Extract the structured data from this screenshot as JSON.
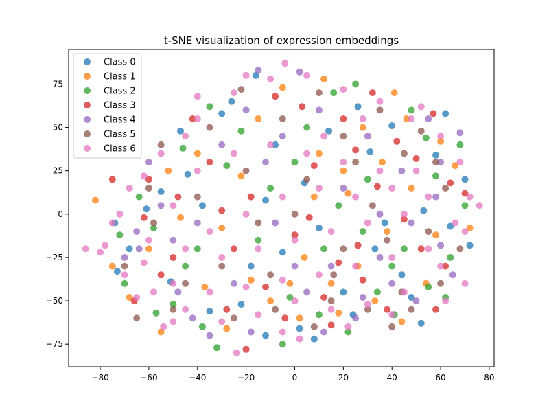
{
  "chart_data": {
    "type": "scatter",
    "title": "t-SNE visualization of expression embeddings",
    "xlabel": "",
    "ylabel": "",
    "xlim": [
      -93,
      82
    ],
    "ylim": [
      -88,
      95
    ],
    "xticks": [
      -80,
      -60,
      -40,
      -20,
      0,
      20,
      40,
      60,
      80
    ],
    "yticks": [
      -75,
      -50,
      -25,
      0,
      25,
      50,
      75
    ],
    "legend_placement": "top-left",
    "grid": false,
    "marker_alpha": 0.75,
    "series": [
      {
        "name": "Class 0",
        "color": "#1f77b4",
        "points": [
          [
            -73,
            -33
          ],
          [
            -30,
            58
          ],
          [
            -51,
            -39
          ],
          [
            24,
            -58
          ],
          [
            -44,
            23
          ],
          [
            40,
            51
          ],
          [
            64,
            -7
          ],
          [
            8,
            -72
          ],
          [
            -12,
            -70
          ],
          [
            62,
            58
          ],
          [
            -26,
            65
          ],
          [
            20,
            -45
          ],
          [
            44,
            -35
          ],
          [
            -61,
            3
          ],
          [
            72,
            -18
          ],
          [
            4,
            18
          ],
          [
            -5,
            -22
          ],
          [
            31,
            36
          ],
          [
            -35,
            -56
          ],
          [
            -16,
            80
          ],
          [
            53,
            2
          ],
          [
            -74,
            -5
          ],
          [
            52,
            -63
          ],
          [
            2,
            -66
          ],
          [
            -47,
            48
          ],
          [
            70,
            20
          ],
          [
            -18,
            -30
          ],
          [
            14,
            48
          ],
          [
            -55,
            13
          ],
          [
            37,
            -5
          ],
          [
            -8,
            40
          ],
          [
            26,
            62
          ],
          [
            -68,
            -20
          ],
          [
            48,
            -48
          ],
          [
            -38,
            5
          ],
          [
            10,
            -8
          ],
          [
            58,
            34
          ],
          [
            -22,
            -52
          ],
          [
            33,
            -20
          ],
          [
            -12,
            8
          ]
        ]
      },
      {
        "name": "Class 1",
        "color": "#ff7f0e",
        "points": [
          [
            -82,
            8
          ],
          [
            -68,
            -48
          ],
          [
            12,
            78
          ],
          [
            46,
            55
          ],
          [
            -37,
            -42
          ],
          [
            18,
            -57
          ],
          [
            38,
            -10
          ],
          [
            -55,
            -68
          ],
          [
            60,
            42
          ],
          [
            -10,
            -50
          ],
          [
            26,
            -30
          ],
          [
            -22,
            22
          ],
          [
            4,
            -25
          ],
          [
            41,
            70
          ],
          [
            58,
            -12
          ],
          [
            -47,
            -2
          ],
          [
            22,
            12
          ],
          [
            -28,
            -66
          ],
          [
            72,
            -8
          ],
          [
            -15,
            55
          ],
          [
            10,
            35
          ],
          [
            -60,
            -20
          ],
          [
            33,
            -50
          ],
          [
            -5,
            73
          ],
          [
            48,
            15
          ],
          [
            -40,
            35
          ],
          [
            15,
            -40
          ],
          [
            66,
            28
          ],
          [
            -75,
            -30
          ],
          [
            2,
            -60
          ],
          [
            36,
            30
          ],
          [
            -30,
            -8
          ],
          [
            54,
            -40
          ],
          [
            -18,
            -38
          ],
          [
            28,
            50
          ],
          [
            -52,
            25
          ],
          [
            8,
            10
          ],
          [
            44,
            -62
          ],
          [
            -2,
            -40
          ],
          [
            20,
            25
          ]
        ]
      },
      {
        "name": "Class 2",
        "color": "#2ca02c",
        "points": [
          [
            41,
            -58
          ],
          [
            -32,
            -77
          ],
          [
            -57,
            -57
          ],
          [
            55,
            -42
          ],
          [
            -46,
            38
          ],
          [
            16,
            70
          ],
          [
            70,
            5
          ],
          [
            -40,
            -20
          ],
          [
            45,
            -20
          ],
          [
            -10,
            15
          ],
          [
            25,
            75
          ],
          [
            -64,
            10
          ],
          [
            58,
            22
          ],
          [
            -2,
            -48
          ],
          [
            34,
            -45
          ],
          [
            -50,
            -52
          ],
          [
            12,
            -20
          ],
          [
            64,
            -25
          ],
          [
            -70,
            -40
          ],
          [
            -22,
            48
          ],
          [
            48,
            60
          ],
          [
            5,
            50
          ],
          [
            -35,
            62
          ],
          [
            28,
            -10
          ],
          [
            -5,
            -75
          ],
          [
            68,
            40
          ],
          [
            -58,
            -8
          ],
          [
            18,
            5
          ],
          [
            -28,
            28
          ],
          [
            40,
            -30
          ],
          [
            10,
            -58
          ],
          [
            -45,
            -30
          ],
          [
            54,
            44
          ],
          [
            -15,
            -15
          ],
          [
            30,
            20
          ],
          [
            -72,
            -12
          ],
          [
            62,
            -48
          ],
          [
            0,
            30
          ],
          [
            -38,
            -65
          ],
          [
            22,
            -68
          ]
        ]
      },
      {
        "name": "Class 3",
        "color": "#d62728",
        "points": [
          [
            -20,
            -78
          ],
          [
            25,
            37
          ],
          [
            -60,
            20
          ],
          [
            -75,
            20
          ],
          [
            57,
            58
          ],
          [
            -35,
            30
          ],
          [
            15,
            -64
          ],
          [
            34,
            16
          ],
          [
            -8,
            68
          ],
          [
            -50,
            -25
          ],
          [
            45,
            -3
          ],
          [
            0,
            -12
          ],
          [
            62,
            -30
          ],
          [
            -28,
            -55
          ],
          [
            20,
            55
          ],
          [
            -66,
            -50
          ],
          [
            38,
            -55
          ],
          [
            8,
            28
          ],
          [
            -42,
            55
          ],
          [
            70,
            12
          ],
          [
            -12,
            -42
          ],
          [
            28,
            -38
          ],
          [
            50,
            32
          ],
          [
            -30,
            2
          ],
          [
            12,
            -48
          ],
          [
            58,
            -55
          ],
          [
            -55,
            -35
          ],
          [
            3,
            62
          ],
          [
            42,
            42
          ],
          [
            -18,
            10
          ],
          [
            26,
            -18
          ],
          [
            -48,
            10
          ],
          [
            64,
            18
          ],
          [
            -4,
            -60
          ],
          [
            32,
            70
          ],
          [
            -62,
            -2
          ],
          [
            18,
            -28
          ],
          [
            52,
            -20
          ],
          [
            -25,
            -20
          ],
          [
            6,
            -2
          ]
        ]
      },
      {
        "name": "Class 4",
        "color": "#9467bd",
        "points": [
          [
            -15,
            83
          ],
          [
            -64,
            -20
          ],
          [
            -42,
            -60
          ],
          [
            2,
            82
          ],
          [
            60,
            -18
          ],
          [
            -18,
            -68
          ],
          [
            35,
            0
          ],
          [
            -55,
            5
          ],
          [
            68,
            47
          ],
          [
            50,
            -50
          ],
          [
            -30,
            40
          ],
          [
            15,
            -30
          ],
          [
            44,
            25
          ],
          [
            -70,
            -25
          ],
          [
            25,
            -60
          ],
          [
            -8,
            -5
          ],
          [
            58,
            10
          ],
          [
            -48,
            -45
          ],
          [
            10,
            60
          ],
          [
            -25,
            -40
          ],
          [
            40,
            -40
          ],
          [
            -60,
            30
          ],
          [
            65,
            -35
          ],
          [
            5,
            -45
          ],
          [
            30,
            45
          ],
          [
            -40,
            -5
          ],
          [
            20,
            15
          ],
          [
            -12,
            30
          ],
          [
            55,
            55
          ],
          [
            -35,
            -70
          ],
          [
            0,
            -30
          ],
          [
            48,
            -5
          ],
          [
            -20,
            60
          ],
          [
            35,
            -25
          ],
          [
            -65,
            -10
          ],
          [
            12,
            -68
          ],
          [
            60,
            30
          ],
          [
            -5,
            45
          ],
          [
            28,
            -48
          ],
          [
            -50,
            -15
          ]
        ]
      },
      {
        "name": "Class 5",
        "color": "#8c564b",
        "points": [
          [
            -65,
            -60
          ],
          [
            -10,
            -35
          ],
          [
            20,
            -20
          ],
          [
            45,
            35
          ],
          [
            -40,
            10
          ],
          [
            10,
            70
          ],
          [
            60,
            -40
          ],
          [
            -25,
            -60
          ],
          [
            30,
            -55
          ],
          [
            -55,
            40
          ],
          [
            55,
            -10
          ],
          [
            0,
            0
          ],
          [
            -70,
            -30
          ],
          [
            35,
            60
          ],
          [
            -20,
            25
          ],
          [
            15,
            -50
          ],
          [
            48,
            -55
          ],
          [
            -45,
            -40
          ],
          [
            25,
            30
          ],
          [
            -5,
            55
          ],
          [
            62,
            15
          ],
          [
            -60,
            15
          ],
          [
            8,
            -65
          ],
          [
            38,
            -15
          ],
          [
            -30,
            -30
          ],
          [
            52,
            48
          ],
          [
            -15,
            -5
          ],
          [
            20,
            45
          ],
          [
            -50,
            -55
          ],
          [
            44,
            -45
          ],
          [
            -35,
            50
          ],
          [
            5,
            20
          ],
          [
            68,
            -20
          ],
          [
            -8,
            -55
          ],
          [
            32,
            5
          ],
          [
            -58,
            -5
          ],
          [
            16,
            -35
          ],
          [
            58,
            30
          ],
          [
            -22,
            72
          ],
          [
            40,
            -65
          ]
        ]
      },
      {
        "name": "Class 6",
        "color": "#e377c2",
        "points": [
          [
            -24,
            -80
          ],
          [
            76,
            5
          ],
          [
            -86,
            -20
          ],
          [
            -4,
            87
          ],
          [
            -54,
            -65
          ],
          [
            -80,
            -22
          ],
          [
            -70,
            -35
          ],
          [
            -58,
            -45
          ],
          [
            -45,
            -55
          ],
          [
            -30,
            -62
          ],
          [
            -15,
            -58
          ],
          [
            0,
            -50
          ],
          [
            15,
            -55
          ],
          [
            30,
            -52
          ],
          [
            45,
            -45
          ],
          [
            60,
            -30
          ],
          [
            70,
            -10
          ],
          [
            72,
            10
          ],
          [
            68,
            30
          ],
          [
            60,
            45
          ],
          [
            48,
            55
          ],
          [
            35,
            65
          ],
          [
            20,
            72
          ],
          [
            5,
            80
          ],
          [
            -10,
            78
          ],
          [
            -25,
            70
          ],
          [
            -40,
            55
          ],
          [
            -55,
            35
          ],
          [
            -68,
            15
          ],
          [
            -75,
            -5
          ],
          [
            -60,
            -15
          ],
          [
            -45,
            -20
          ],
          [
            -30,
            -25
          ],
          [
            -15,
            -20
          ],
          [
            0,
            -15
          ],
          [
            15,
            -10
          ],
          [
            30,
            -5
          ],
          [
            45,
            0
          ],
          [
            55,
            10
          ],
          [
            50,
            25
          ],
          [
            35,
            25
          ],
          [
            20,
            30
          ],
          [
            5,
            35
          ],
          [
            -10,
            40
          ],
          [
            -25,
            35
          ],
          [
            -40,
            25
          ],
          [
            -50,
            5
          ],
          [
            -35,
            -10
          ],
          [
            -20,
            0
          ],
          [
            -5,
            10
          ],
          [
            10,
            15
          ],
          [
            25,
            10
          ],
          [
            40,
            15
          ],
          [
            55,
            -20
          ],
          [
            40,
            -25
          ],
          [
            25,
            -30
          ],
          [
            10,
            -35
          ],
          [
            -5,
            -38
          ],
          [
            -20,
            -42
          ],
          [
            -35,
            -45
          ],
          [
            -50,
            -40
          ],
          [
            -62,
            -28
          ],
          [
            -78,
            -18
          ],
          [
            -50,
            -62
          ],
          [
            -5,
            -68
          ],
          [
            40,
            -58
          ],
          [
            62,
            -50
          ],
          [
            70,
            -40
          ],
          [
            66,
            -5
          ],
          [
            52,
            62
          ],
          [
            -20,
            80
          ],
          [
            -40,
            68
          ],
          [
            -62,
            22
          ],
          [
            -72,
            0
          ],
          [
            12,
            45
          ],
          [
            28,
            55
          ],
          [
            -45,
            45
          ],
          [
            -65,
            -48
          ],
          [
            2,
            -72
          ],
          [
            22,
            -65
          ]
        ]
      }
    ]
  }
}
